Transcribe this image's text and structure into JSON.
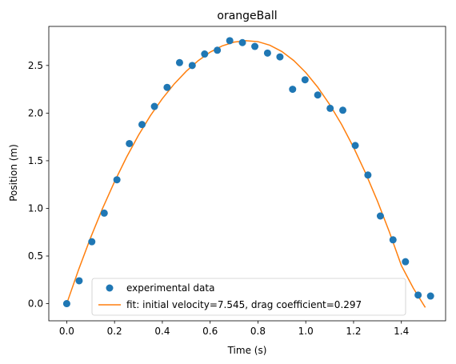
{
  "chart_data": {
    "type": "scatter",
    "title": "orangeBall",
    "xlabel": "Time (s)",
    "ylabel": "Position (m)",
    "xlim": [
      -0.075,
      1.585
    ],
    "ylim": [
      -0.18,
      2.91
    ],
    "xticks": [
      0.0,
      0.2,
      0.4,
      0.6,
      0.8,
      1.0,
      1.2,
      1.4
    ],
    "xtick_labels": [
      "0.0",
      "0.2",
      "0.4",
      "0.6",
      "0.8",
      "1.0",
      "1.2",
      "1.4"
    ],
    "yticks": [
      0.0,
      0.5,
      1.0,
      1.5,
      2.0,
      2.5
    ],
    "ytick_labels": [
      "0.0",
      "0.5",
      "1.0",
      "1.5",
      "2.0",
      "2.5"
    ],
    "grid": false,
    "legend_position": "lower-center",
    "series": [
      {
        "name": "experimental data",
        "kind": "scatter",
        "color": "#1f77b4",
        "x": [
          0.0,
          0.052,
          0.105,
          0.157,
          0.21,
          0.262,
          0.315,
          0.367,
          0.42,
          0.472,
          0.525,
          0.577,
          0.63,
          0.682,
          0.735,
          0.787,
          0.84,
          0.892,
          0.945,
          0.997,
          1.05,
          1.102,
          1.155,
          1.207,
          1.26,
          1.312,
          1.365,
          1.417,
          1.47,
          1.522
        ],
        "y": [
          0.0,
          0.24,
          0.65,
          0.95,
          1.3,
          1.68,
          1.88,
          2.07,
          2.27,
          2.53,
          2.5,
          2.62,
          2.66,
          2.76,
          2.74,
          2.7,
          2.63,
          2.59,
          2.25,
          2.35,
          2.19,
          2.05,
          2.03,
          1.66,
          1.35,
          0.92,
          0.67,
          0.44,
          0.09,
          0.08
        ]
      },
      {
        "name": "fit: initial velocity=7.545, drag coefficient=0.297",
        "kind": "line",
        "color": "#ff7f0e",
        "x": [
          0.0,
          0.05,
          0.1,
          0.15,
          0.2,
          0.25,
          0.3,
          0.35,
          0.4,
          0.45,
          0.5,
          0.55,
          0.6,
          0.65,
          0.7,
          0.75,
          0.8,
          0.85,
          0.9,
          0.95,
          1.0,
          1.05,
          1.1,
          1.15,
          1.2,
          1.25,
          1.3,
          1.35,
          1.4,
          1.45,
          1.5
        ],
        "y": [
          0.0,
          0.359,
          0.693,
          1.0,
          1.28,
          1.536,
          1.767,
          1.973,
          2.152,
          2.307,
          2.439,
          2.55,
          2.64,
          2.705,
          2.745,
          2.76,
          2.75,
          2.712,
          2.646,
          2.551,
          2.426,
          2.272,
          2.09,
          1.88,
          1.64,
          1.372,
          1.076,
          0.751,
          0.4,
          0.162,
          -0.04
        ]
      }
    ]
  }
}
